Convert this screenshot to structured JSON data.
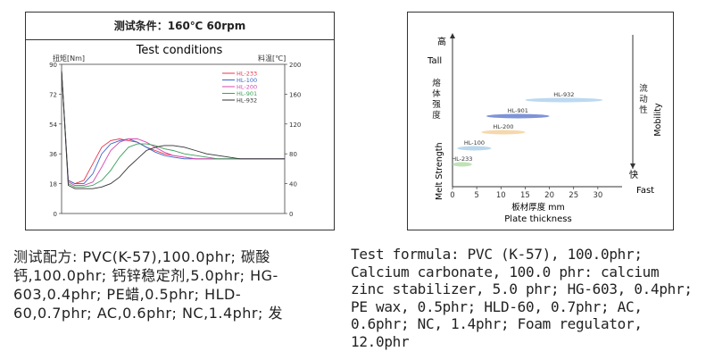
{
  "left_figure": {
    "title": "测试条件：160℃ 60rpm",
    "subtitle": "Test conditions"
  },
  "right_figure": {
    "top_label_cn": "高",
    "top_label_en": "Tall",
    "left_label_cn": "熔体强度",
    "left_label_en": "Melt Strength",
    "right_label_cn": "流动性",
    "right_label_en": "Mobility",
    "bottom_right_cn": "快",
    "bottom_right_en": "Fast",
    "xlabel_cn": "板材厚度 mm",
    "xlabel_en": "Plate thickness"
  },
  "captions": {
    "cn_lines": [
      "测试配方: PVC(K-57),100.0phr; 碳酸",
      "钙,100.0phr; 钙锌稳定剂,5.0phr; HG-",
      "603,0.4phr; PE蜡,0.5phr; HLD-",
      "60,0.7phr; AC,0.6phr; NC,1.4phr; 发"
    ],
    "en_lines": [
      "Test formula: PVC (K-57), 100.0phr;",
      "Calcium carbonate, 100.0 phr: calcium",
      "zinc stabilizer, 5.0 phr; HG-603, 0.4phr;",
      "PE wax, 0.5phr; HLD-60, 0.7phr; AC,",
      "0.6phr; NC, 1.4phr; Foam regulator,",
      "12.0phr"
    ]
  },
  "chart_data": [
    {
      "type": "line",
      "ylabel": "扭矩[Nm]",
      "y2label": "料温[℃]",
      "ylim": [
        0,
        90
      ],
      "y2lim": [
        0,
        200
      ],
      "yticks": [
        0,
        18,
        36,
        54,
        72,
        90
      ],
      "y2ticks": [
        0,
        40,
        80,
        120,
        160,
        200
      ],
      "xlim": [
        0,
        100
      ],
      "grid": false,
      "legend_position": "top-right",
      "series": [
        {
          "name": "HL-233",
          "color": "#e8344a",
          "x": [
            0,
            3,
            6,
            10,
            14,
            18,
            22,
            26,
            30,
            34,
            38,
            42,
            46,
            50,
            55,
            60,
            65,
            70,
            75,
            80,
            85,
            90,
            95,
            100
          ],
          "y": [
            86,
            20,
            18,
            20,
            30,
            40,
            44,
            45,
            44,
            43,
            40,
            38,
            36,
            35,
            34,
            33,
            33,
            33,
            33,
            33,
            33,
            33,
            33,
            33
          ]
        },
        {
          "name": "HL-100",
          "color": "#3a63c9",
          "x": [
            0,
            3,
            6,
            10,
            14,
            18,
            22,
            26,
            30,
            34,
            38,
            42,
            46,
            50,
            55,
            60,
            65,
            70,
            75,
            80,
            85,
            90,
            95,
            100
          ],
          "y": [
            86,
            20,
            18,
            18,
            24,
            36,
            42,
            44,
            45,
            43,
            40,
            37,
            35,
            34,
            33,
            33,
            33,
            33,
            33,
            33,
            33,
            33,
            33,
            33
          ]
        },
        {
          "name": "HL-200",
          "color": "#d54ab0",
          "x": [
            0,
            3,
            6,
            10,
            14,
            18,
            22,
            26,
            30,
            34,
            38,
            42,
            46,
            50,
            55,
            60,
            65,
            70,
            75,
            80,
            85,
            90,
            95,
            100
          ],
          "y": [
            86,
            19,
            17,
            17,
            19,
            28,
            38,
            43,
            45,
            45,
            43,
            40,
            37,
            35,
            34,
            33,
            33,
            33,
            33,
            33,
            33,
            33,
            33,
            33
          ]
        },
        {
          "name": "HL-901",
          "color": "#3aa05a",
          "x": [
            0,
            3,
            6,
            10,
            14,
            18,
            22,
            26,
            30,
            34,
            38,
            42,
            46,
            50,
            55,
            60,
            65,
            70,
            75,
            80,
            85,
            90,
            95,
            100
          ],
          "y": [
            86,
            18,
            16,
            16,
            17,
            20,
            26,
            34,
            40,
            42,
            42,
            41,
            39,
            38,
            36,
            35,
            34,
            33,
            33,
            33,
            33,
            33,
            33,
            33
          ]
        },
        {
          "name": "HL-932",
          "color": "#333333",
          "x": [
            0,
            3,
            6,
            10,
            14,
            18,
            22,
            26,
            30,
            34,
            38,
            42,
            46,
            50,
            55,
            60,
            65,
            70,
            75,
            80,
            85,
            90,
            95,
            100
          ],
          "y": [
            86,
            17,
            15,
            15,
            15,
            16,
            18,
            22,
            28,
            33,
            38,
            40,
            41,
            41,
            40,
            38,
            36,
            35,
            34,
            33,
            33,
            33,
            33,
            33
          ]
        }
      ]
    },
    {
      "type": "range-bar",
      "xlabel": "板材厚度 mm",
      "ylabel": "Melt Strength",
      "xlim": [
        0,
        35
      ],
      "xticks": [
        0,
        5,
        10,
        15,
        20,
        25,
        30
      ],
      "series": [
        {
          "name": "HL-233",
          "x_range": [
            0,
            4
          ],
          "level": 1,
          "color": "#bfe3b6"
        },
        {
          "name": "HL-100",
          "x_range": [
            1,
            8
          ],
          "level": 2,
          "color": "#b9d8ee"
        },
        {
          "name": "HL-200",
          "x_range": [
            6,
            15
          ],
          "level": 3,
          "color": "#f6d8ad"
        },
        {
          "name": "HL-901",
          "x_range": [
            7,
            20
          ],
          "level": 4,
          "color": "#7e93d8"
        },
        {
          "name": "HL-932",
          "x_range": [
            15,
            31
          ],
          "level": 5,
          "color": "#bcd9f2"
        }
      ]
    }
  ]
}
